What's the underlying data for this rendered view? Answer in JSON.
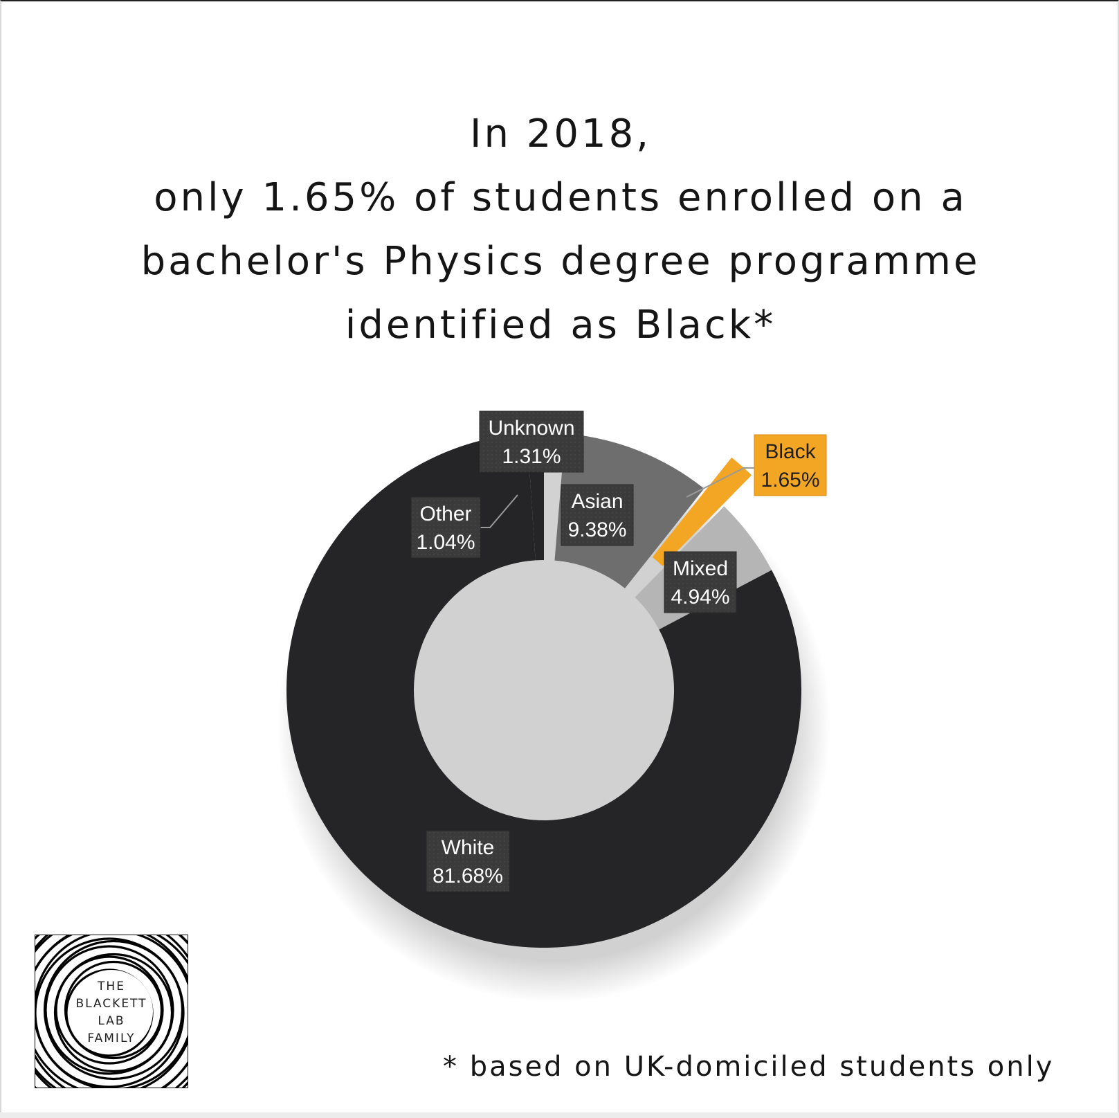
{
  "title": {
    "lines": [
      "In 2018,",
      "only 1.65% of students enrolled on a",
      "bachelor's Physics degree programme",
      "identified as Black*"
    ]
  },
  "footnote": "* based on UK-domiciled students only",
  "logo": {
    "lines": [
      "THE",
      "BLACKETT",
      "LAB",
      "FAMILY"
    ]
  },
  "colors": {
    "white_slice": "#252527",
    "unknown_slice": "#d2d2d2",
    "asian_slice": "#6e6e6e",
    "black_slice": "#f2a623",
    "mixed_slice": "#b5b5b5",
    "label_dark": "#3b3b3b",
    "label_highlight": "#f2a623"
  },
  "chart_data": {
    "type": "donut",
    "title": "",
    "slices": [
      {
        "name": "Unknown",
        "value": 1.31,
        "label": "1.31%",
        "color": "#d2d2d2"
      },
      {
        "name": "Asian",
        "value": 9.38,
        "label": "9.38%",
        "color": "#6e6e6e"
      },
      {
        "name": "Black",
        "value": 1.65,
        "label": "1.65%",
        "color": "#f2a623",
        "exploded": true
      },
      {
        "name": "Mixed",
        "value": 4.94,
        "label": "4.94%",
        "color": "#b5b5b5"
      },
      {
        "name": "White",
        "value": 81.68,
        "label": "81.68%",
        "color": "#252527"
      },
      {
        "name": "Other",
        "value": 1.04,
        "label": "1.04%",
        "color": "#252527"
      }
    ],
    "start_angle_deg": 0,
    "direction": "clockwise"
  }
}
